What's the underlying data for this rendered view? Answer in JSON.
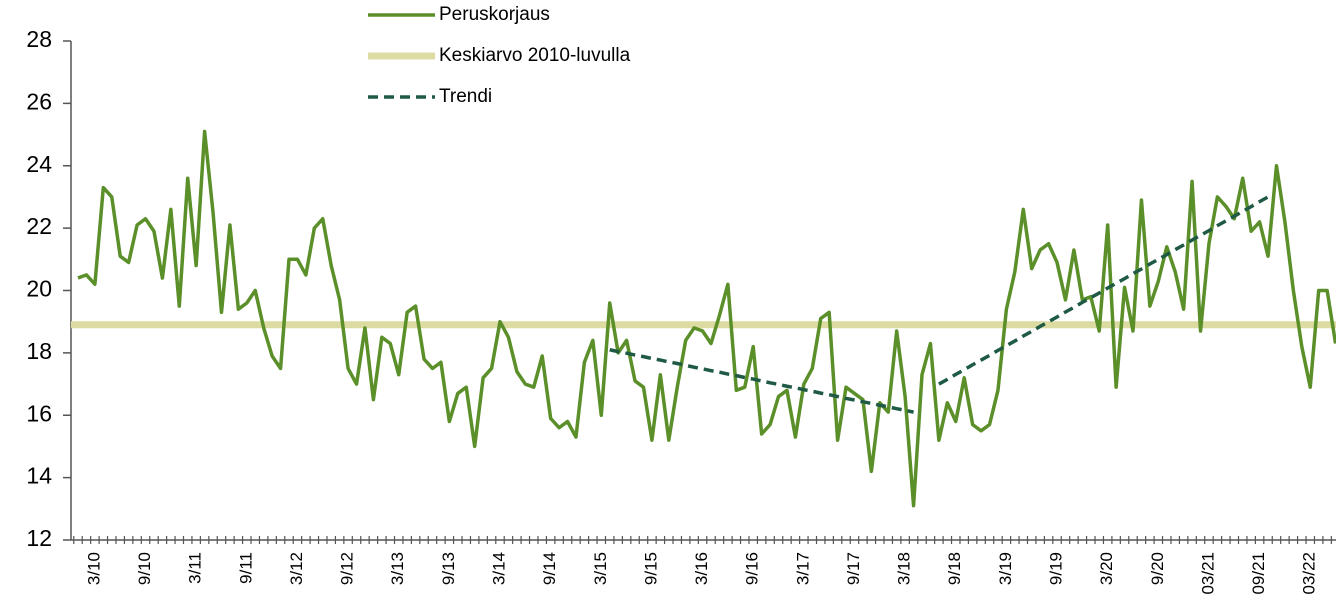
{
  "chart_data": {
    "type": "line",
    "ylim": [
      12,
      28
    ],
    "yticks": [
      12,
      14,
      16,
      18,
      20,
      22,
      24,
      26,
      28
    ],
    "categories": [
      null,
      null,
      "3/10",
      null,
      null,
      null,
      null,
      null,
      "9/10",
      null,
      null,
      null,
      null,
      null,
      "3/11",
      null,
      null,
      null,
      null,
      null,
      "9/11",
      null,
      null,
      null,
      null,
      null,
      "3/12",
      null,
      null,
      null,
      null,
      null,
      "9/12",
      null,
      null,
      null,
      null,
      null,
      "3/13",
      null,
      null,
      null,
      null,
      null,
      "9/13",
      null,
      null,
      null,
      null,
      null,
      "3/14",
      null,
      null,
      null,
      null,
      null,
      "9/14",
      null,
      null,
      null,
      null,
      null,
      "3/15",
      null,
      null,
      null,
      null,
      null,
      "9/15",
      null,
      null,
      null,
      null,
      null,
      "3/16",
      null,
      null,
      null,
      null,
      null,
      "9/16",
      null,
      null,
      null,
      null,
      null,
      "3/17",
      null,
      null,
      null,
      null,
      null,
      "9/17",
      null,
      null,
      null,
      null,
      null,
      "3/18",
      null,
      null,
      null,
      null,
      null,
      "9/18",
      null,
      null,
      null,
      null,
      null,
      "3/19",
      null,
      null,
      null,
      null,
      null,
      "9/19",
      null,
      null,
      null,
      null,
      null,
      "3/20",
      null,
      null,
      null,
      null,
      null,
      "9/20",
      null,
      null,
      null,
      null,
      null,
      "03/21",
      null,
      null,
      null,
      null,
      null,
      "09/21",
      null,
      null,
      null,
      null,
      null,
      "03/22",
      null,
      null,
      null
    ],
    "series": [
      {
        "name": "Peruskorjaus",
        "color": "#5b8f29",
        "style": "solid",
        "values": [
          20.4,
          20.5,
          20.2,
          23.3,
          23.0,
          21.1,
          20.9,
          22.1,
          22.3,
          21.9,
          20.4,
          22.6,
          19.5,
          23.6,
          20.8,
          25.1,
          22.5,
          19.3,
          22.1,
          19.4,
          19.6,
          20.0,
          18.8,
          17.9,
          17.5,
          21.0,
          21.0,
          20.5,
          22.0,
          22.3,
          20.8,
          19.7,
          17.5,
          17.0,
          18.8,
          16.5,
          18.5,
          18.3,
          17.3,
          19.3,
          19.5,
          17.8,
          17.5,
          17.7,
          15.8,
          16.7,
          16.9,
          15.0,
          17.2,
          17.5,
          19.0,
          18.5,
          17.4,
          17.0,
          16.9,
          17.9,
          15.9,
          15.6,
          15.8,
          15.3,
          17.7,
          18.4,
          16.0,
          19.6,
          18.0,
          18.4,
          17.1,
          16.9,
          15.2,
          17.3,
          15.2,
          16.9,
          18.4,
          18.8,
          18.7,
          18.3,
          19.2,
          20.2,
          16.8,
          16.9,
          18.2,
          15.4,
          15.7,
          16.6,
          16.8,
          15.3,
          17.0,
          17.5,
          19.1,
          19.3,
          15.2,
          16.9,
          16.7,
          16.5,
          14.2,
          16.4,
          16.1,
          18.7,
          16.6,
          13.1,
          17.3,
          18.3,
          15.2,
          16.4,
          15.8,
          17.2,
          15.7,
          15.5,
          15.7,
          16.8,
          19.4,
          20.6,
          22.6,
          20.7,
          21.3,
          21.5,
          20.9,
          19.7,
          21.3,
          19.7,
          19.8,
          18.7,
          22.1,
          16.9,
          20.1,
          18.7,
          22.9,
          19.5,
          20.3,
          21.4,
          20.6,
          19.4,
          23.5,
          18.7,
          21.5,
          23.0,
          22.7,
          22.3,
          23.6,
          21.9,
          22.2,
          21.1,
          24.0,
          22.2,
          20.0,
          18.2,
          16.9,
          20.0,
          20.0,
          18.3
        ]
      },
      {
        "name": "Trendi",
        "color": "#1f5a44",
        "style": "dashed",
        "values": [
          null,
          null,
          null,
          null,
          null,
          null,
          null,
          null,
          null,
          null,
          null,
          null,
          null,
          null,
          null,
          null,
          null,
          null,
          null,
          null,
          null,
          null,
          null,
          null,
          null,
          null,
          null,
          null,
          null,
          null,
          null,
          null,
          null,
          null,
          null,
          null,
          null,
          null,
          null,
          null,
          null,
          null,
          null,
          null,
          null,
          null,
          null,
          null,
          null,
          null,
          null,
          null,
          null,
          null,
          null,
          null,
          null,
          null,
          null,
          null,
          null,
          null,
          null,
          18.1,
          18.04,
          17.99,
          17.93,
          17.88,
          17.82,
          17.77,
          17.71,
          17.66,
          17.6,
          17.54,
          17.49,
          17.43,
          17.38,
          17.32,
          17.27,
          17.21,
          17.16,
          17.1,
          17.04,
          16.99,
          16.93,
          16.88,
          16.82,
          16.77,
          16.71,
          16.66,
          16.6,
          16.54,
          16.49,
          16.43,
          16.38,
          16.32,
          16.27,
          16.21,
          16.16,
          16.1,
          null,
          null,
          17.0,
          17.15,
          17.31,
          17.46,
          17.62,
          17.77,
          17.92,
          18.08,
          18.23,
          18.38,
          18.54,
          18.69,
          18.85,
          19.0,
          19.15,
          19.31,
          19.46,
          19.62,
          19.77,
          19.92,
          20.08,
          20.23,
          20.38,
          20.54,
          20.69,
          20.85,
          21.0,
          21.15,
          21.31,
          21.46,
          21.62,
          21.77,
          21.92,
          22.08,
          22.23,
          22.38,
          22.54,
          22.69,
          22.85,
          23.0,
          null,
          null,
          null,
          null,
          null,
          null,
          null,
          null
        ]
      }
    ],
    "reference_line": {
      "name": "Keskiarvo 2010-luvulla",
      "color": "#dcdca2",
      "value": 18.9
    }
  }
}
